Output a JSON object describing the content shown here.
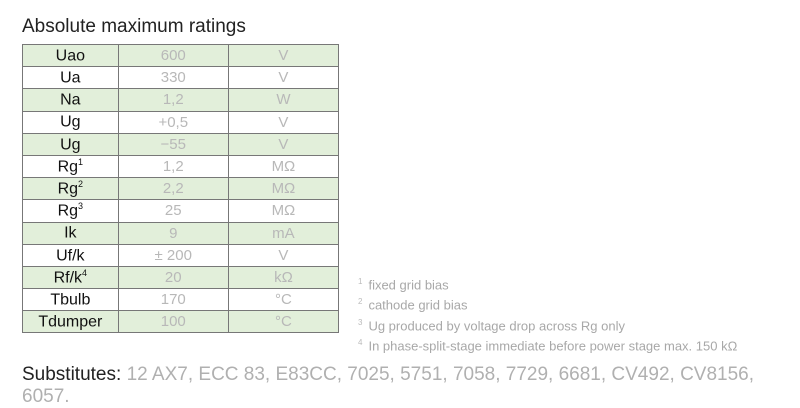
{
  "title": "Absolute maximum ratings",
  "rows": [
    {
      "param": "Uao",
      "sup": "",
      "value": "600",
      "unit": "V"
    },
    {
      "param": "Ua",
      "sup": "",
      "value": "330",
      "unit": "V"
    },
    {
      "param": "Na",
      "sup": "",
      "value": "1,2",
      "unit": "W"
    },
    {
      "param": "Ug",
      "sup": "",
      "value": "+0,5",
      "unit": "V"
    },
    {
      "param": "Ug",
      "sup": "",
      "value": "−55",
      "unit": "V"
    },
    {
      "param": "Rg",
      "sup": "1",
      "value": "1,2",
      "unit": "MΩ"
    },
    {
      "param": "Rg",
      "sup": "2",
      "value": "2,2",
      "unit": "MΩ"
    },
    {
      "param": "Rg",
      "sup": "3",
      "value": "25",
      "unit": "MΩ"
    },
    {
      "param": "Ik",
      "sup": "",
      "value": "9",
      "unit": "mA"
    },
    {
      "param": "Uf/k",
      "sup": "",
      "value": "± 200",
      "unit": "V"
    },
    {
      "param": "Rf/k",
      "sup": "4",
      "value": "20",
      "unit": "kΩ"
    },
    {
      "param": "Tbulb",
      "sup": "",
      "value": "170",
      "unit": "°C"
    },
    {
      "param": "Tdumper",
      "sup": "",
      "value": "100",
      "unit": "°C"
    }
  ],
  "notes": [
    {
      "num": "1",
      "text": "fixed grid bias"
    },
    {
      "num": "2",
      "text": "cathode grid bias"
    },
    {
      "num": "3",
      "text": "Ug produced by voltage drop across Rg only"
    },
    {
      "num": "4",
      "text": "In phase-split-stage immediate before power stage max. 150 kΩ"
    }
  ],
  "substitutes": {
    "label": "Substitutes:",
    "list": "12 AX7, ECC 83, E83CC, 7025, 5751, 7058, 7729, 6681, CV492, CV8156, 6057."
  },
  "colors": {
    "row_green": "#e2efda",
    "border": "#777777"
  }
}
